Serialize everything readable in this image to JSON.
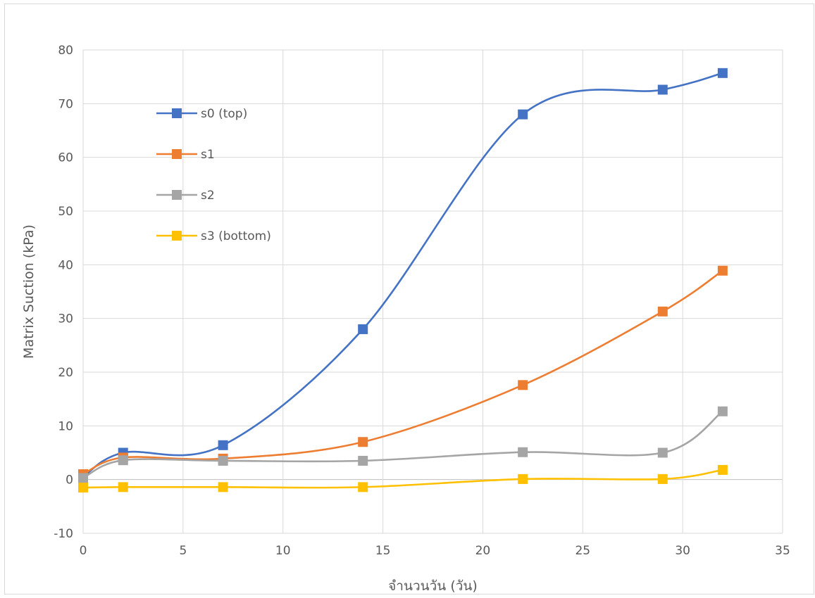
{
  "chart_data": {
    "type": "line",
    "smooth": true,
    "markers": "square",
    "title": "",
    "xlabel": "จำนวนวัน (วัน)",
    "ylabel": "Matrix Suction (kPa)",
    "xlim": [
      0,
      35
    ],
    "ylim": [
      -10,
      80
    ],
    "xticks": [
      0,
      5,
      10,
      15,
      20,
      25,
      30,
      35
    ],
    "yticks": [
      -10,
      0,
      10,
      20,
      30,
      40,
      50,
      60,
      70,
      80
    ],
    "grid": true,
    "legend_position": "top-left",
    "x": [
      0,
      2,
      7,
      14,
      22,
      29,
      32
    ],
    "series": [
      {
        "name": "s0 (top)",
        "color": "#4472C4",
        "values": [
          0.5,
          5.0,
          6.4,
          28.0,
          68.0,
          72.6,
          75.7
        ]
      },
      {
        "name": "s1",
        "color": "#ED7D31",
        "values": [
          1.0,
          4.1,
          3.9,
          7.0,
          17.6,
          31.3,
          38.9
        ]
      },
      {
        "name": "s2",
        "color": "#A5A5A5",
        "values": [
          0.3,
          3.6,
          3.5,
          3.5,
          5.1,
          5.0,
          12.7
        ]
      },
      {
        "name": "s3 (bottom)",
        "color": "#FFC000",
        "values": [
          -1.5,
          -1.4,
          -1.4,
          -1.4,
          0.1,
          0.1,
          1.8
        ]
      }
    ]
  }
}
